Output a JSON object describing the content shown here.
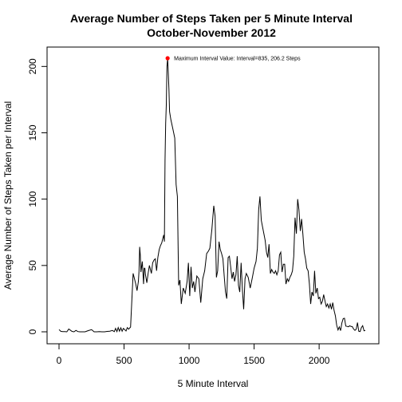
{
  "chart_data": {
    "type": "line",
    "title": "Average Number of Steps Taken per 5 Minute Interval",
    "subtitle": "October-November 2012",
    "xlabel": "5 Minute Interval",
    "ylabel": "Average Number of Steps Taken per Interval",
    "xlim": [
      0,
      2355
    ],
    "ylim": [
      0,
      206.2
    ],
    "x_ticks": [
      0,
      500,
      1000,
      1500,
      2000
    ],
    "y_ticks": [
      0,
      50,
      100,
      150,
      200
    ],
    "grid": false,
    "legend": "none",
    "line_color": "#000000",
    "highlight_color": "#ff0000",
    "annotation": {
      "text": "Maximum Interval Value: Interval=835, 206.2 Steps",
      "x": 835,
      "y": 206.2
    },
    "series": [
      {
        "x": [
          0,
          15,
          30,
          45,
          60,
          75,
          100,
          115,
          130,
          145,
          160,
          200,
          225,
          250,
          270,
          290,
          310,
          330,
          350,
          370,
          390,
          410,
          425,
          435,
          445,
          455,
          465,
          475,
          485,
          495,
          505,
          515,
          525,
          535,
          550,
          570,
          580,
          590,
          600,
          610,
          615,
          620,
          625,
          630,
          635,
          640,
          650,
          655,
          660,
          665,
          675,
          685,
          695,
          705,
          710,
          720,
          730,
          740,
          750,
          760,
          770,
          780,
          790,
          800,
          805,
          810,
          815,
          820,
          825,
          830,
          835,
          840,
          845,
          850,
          860,
          875,
          890,
          900,
          910,
          920,
          930,
          940,
          955,
          970,
          985,
          995,
          1005,
          1015,
          1025,
          1035,
          1045,
          1060,
          1075,
          1090,
          1105,
          1120,
          1135,
          1150,
          1160,
          1175,
          1190,
          1200,
          1210,
          1220,
          1230,
          1240,
          1250,
          1260,
          1270,
          1280,
          1290,
          1300,
          1310,
          1320,
          1330,
          1340,
          1350,
          1360,
          1370,
          1380,
          1390,
          1400,
          1410,
          1420,
          1430,
          1440,
          1455,
          1470,
          1485,
          1500,
          1515,
          1525,
          1535,
          1545,
          1555,
          1565,
          1575,
          1585,
          1595,
          1605,
          1615,
          1625,
          1635,
          1645,
          1655,
          1665,
          1675,
          1685,
          1695,
          1705,
          1715,
          1725,
          1735,
          1745,
          1755,
          1765,
          1775,
          1785,
          1795,
          1805,
          1815,
          1825,
          1835,
          1845,
          1855,
          1865,
          1875,
          1885,
          1895,
          1905,
          1915,
          1925,
          1935,
          1945,
          1955,
          1965,
          1975,
          1985,
          1995,
          2005,
          2015,
          2025,
          2035,
          2045,
          2055,
          2065,
          2075,
          2085,
          2095,
          2105,
          2115,
          2125,
          2135,
          2145,
          2155,
          2165,
          2175,
          2185,
          2195,
          2205,
          2215,
          2225,
          2235,
          2245,
          2255,
          2265,
          2275,
          2285,
          2295,
          2305,
          2315,
          2325,
          2335,
          2345,
          2355
        ],
        "y": [
          1.7,
          0.3,
          0.1,
          0.2,
          0.0,
          2.1,
          0.3,
          0.0,
          1.1,
          0.2,
          0.0,
          0.0,
          0.9,
          1.6,
          0.0,
          0.0,
          0.1,
          0.0,
          0.0,
          0.3,
          0.5,
          1.0,
          0.1,
          2.6,
          0.2,
          3.2,
          0.5,
          3.0,
          0.4,
          2.6,
          1.7,
          0.6,
          3.2,
          2.0,
          3.6,
          44.0,
          40.0,
          36.0,
          31.0,
          38.0,
          46.0,
          64.0,
          58.0,
          45.0,
          49.0,
          53.0,
          36.0,
          48.0,
          48.0,
          43.0,
          37.0,
          44.0,
          50.0,
          46.0,
          44.0,
          52.0,
          54.0,
          55.0,
          46.0,
          56.0,
          62.0,
          65.0,
          67.0,
          71.0,
          73.0,
          68.0,
          129.0,
          157.0,
          171.0,
          200.0,
          206.2,
          195.0,
          183.0,
          166.0,
          160.0,
          153.0,
          146.0,
          111.0,
          102.0,
          35.0,
          39.0,
          21.0,
          33.0,
          29.0,
          38.0,
          52.0,
          27.0,
          49.0,
          33.0,
          38.0,
          30.0,
          42.0,
          40.0,
          22.0,
          40.0,
          46.0,
          59.0,
          61.0,
          63.0,
          77.0,
          95.0,
          87.0,
          41.0,
          46.0,
          68.0,
          62.0,
          59.0,
          55.0,
          42.0,
          30.0,
          25.0,
          56.0,
          57.0,
          49.0,
          40.0,
          45.0,
          38.0,
          43.0,
          57.0,
          35.0,
          30.0,
          52.0,
          32.0,
          17.0,
          40.0,
          44.0,
          41.0,
          33.0,
          40.0,
          48.0,
          53.0,
          63.0,
          92.0,
          102.0,
          84.0,
          79.0,
          74.0,
          69.0,
          60.0,
          56.0,
          66.0,
          44.0,
          47.0,
          45.0,
          44.0,
          46.0,
          43.0,
          46.0,
          58.0,
          60.0,
          45.0,
          51.0,
          51.0,
          36.0,
          40.0,
          38.0,
          41.0,
          43.0,
          46.0,
          57.0,
          86.0,
          74.0,
          100.0,
          92.0,
          76.0,
          85.0,
          74.0,
          60.0,
          55.0,
          48.0,
          46.0,
          36.0,
          21.0,
          30.0,
          27.0,
          46.0,
          29.0,
          33.0,
          25.0,
          26.0,
          21.0,
          23.0,
          28.0,
          23.0,
          19.0,
          21.0,
          18.0,
          21.0,
          17.0,
          22.0,
          16.0,
          12.0,
          5.0,
          1.4,
          3.7,
          0.9,
          6.6,
          10.0,
          10.2,
          4.3,
          4.1,
          3.8,
          4.5,
          4.0,
          3.9,
          2.1,
          1.1,
          2.0,
          7.0,
          0.4,
          0.2,
          3.2,
          4.6,
          0.8,
          1.1
        ]
      }
    ]
  }
}
